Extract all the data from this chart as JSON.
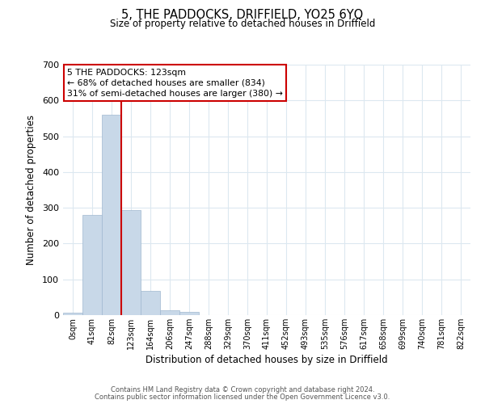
{
  "title": "5, THE PADDOCKS, DRIFFIELD, YO25 6YQ",
  "subtitle": "Size of property relative to detached houses in Driffield",
  "xlabel": "Distribution of detached houses by size in Driffield",
  "ylabel": "Number of detached properties",
  "bar_labels": [
    "0sqm",
    "41sqm",
    "82sqm",
    "123sqm",
    "164sqm",
    "206sqm",
    "247sqm",
    "288sqm",
    "329sqm",
    "370sqm",
    "411sqm",
    "452sqm",
    "493sqm",
    "535sqm",
    "576sqm",
    "617sqm",
    "658sqm",
    "699sqm",
    "740sqm",
    "781sqm",
    "822sqm"
  ],
  "bar_values": [
    7,
    281,
    560,
    293,
    68,
    14,
    9,
    0,
    0,
    0,
    0,
    0,
    0,
    0,
    0,
    0,
    0,
    0,
    0,
    0,
    0
  ],
  "bar_color": "#c8d8e8",
  "bar_edge_color": "#a0b8d0",
  "vline_x": 3,
  "vline_color": "#cc0000",
  "ylim": [
    0,
    700
  ],
  "yticks": [
    0,
    100,
    200,
    300,
    400,
    500,
    600,
    700
  ],
  "annotation_box_text": "5 THE PADDOCKS: 123sqm\n← 68% of detached houses are smaller (834)\n31% of semi-detached houses are larger (380) →",
  "footer_line1": "Contains HM Land Registry data © Crown copyright and database right 2024.",
  "footer_line2": "Contains public sector information licensed under the Open Government Licence v3.0.",
  "background_color": "#ffffff",
  "grid_color": "#dce8f0"
}
